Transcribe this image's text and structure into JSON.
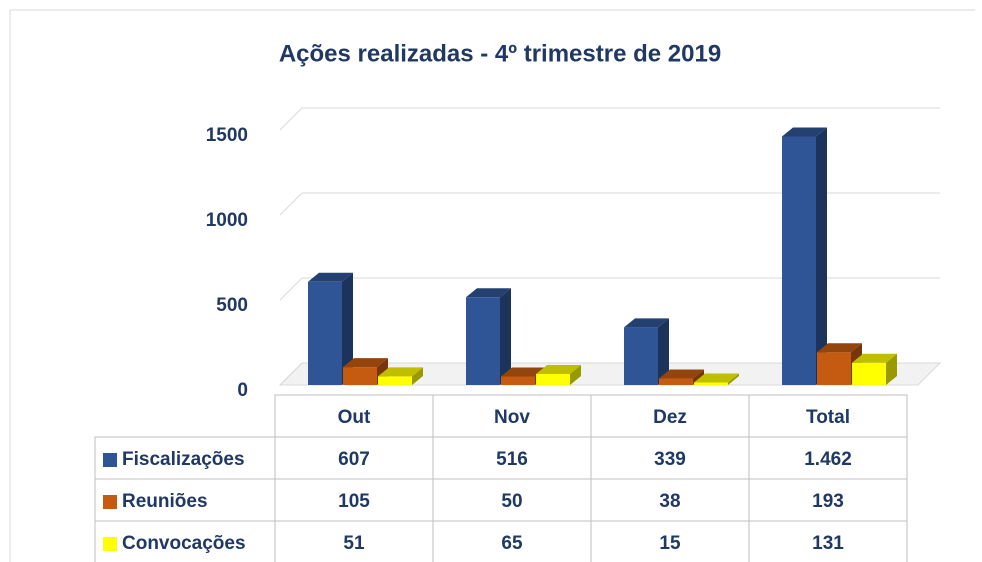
{
  "chart_data": {
    "type": "bar",
    "title": "Ações realizadas  - 4º trimestre de 2019",
    "categories": [
      "Out",
      "Nov",
      "Dez",
      "Total"
    ],
    "series": [
      {
        "name": "Fiscalizações",
        "color": "#2f5597",
        "values": [
          607,
          516,
          339,
          1462
        ],
        "value_labels": [
          "607",
          "516",
          "339",
          "1.462"
        ]
      },
      {
        "name": "Reuniões",
        "color": "#c55a11",
        "values": [
          105,
          50,
          38,
          193
        ]
      },
      {
        "name": "Convocações",
        "color": "#ffff00",
        "values": [
          51,
          65,
          15,
          131
        ]
      }
    ],
    "ylim": [
      0,
      1500
    ],
    "yticks": [
      0,
      500,
      1000,
      1500
    ],
    "grid": true
  }
}
